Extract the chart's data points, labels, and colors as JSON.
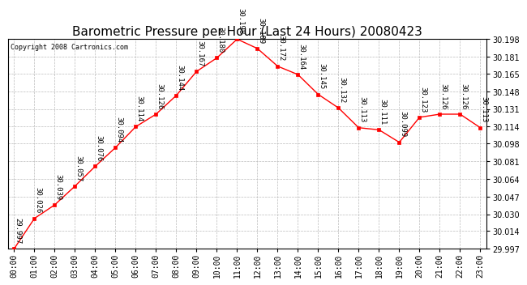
{
  "title": "Barometric Pressure per Hour (Last 24 Hours) 20080423",
  "copyright": "Copyright 2008 Cartronics.com",
  "hours": [
    0,
    1,
    2,
    3,
    4,
    5,
    6,
    7,
    8,
    9,
    10,
    11,
    12,
    13,
    14,
    15,
    16,
    17,
    18,
    19,
    20,
    21,
    22,
    23
  ],
  "labels": [
    "00:00",
    "01:00",
    "02:00",
    "03:00",
    "04:00",
    "05:00",
    "06:00",
    "07:00",
    "08:00",
    "09:00",
    "10:00",
    "11:00",
    "12:00",
    "13:00",
    "14:00",
    "15:00",
    "16:00",
    "17:00",
    "18:00",
    "19:00",
    "20:00",
    "21:00",
    "22:00",
    "23:00"
  ],
  "values": [
    29.997,
    30.026,
    30.039,
    30.057,
    30.076,
    30.094,
    30.114,
    30.126,
    30.144,
    30.167,
    30.18,
    30.198,
    30.189,
    30.172,
    30.164,
    30.145,
    30.132,
    30.113,
    30.111,
    30.099,
    30.123,
    30.126,
    30.126,
    30.113
  ],
  "ylim_min": 29.997,
  "ylim_max": 30.198,
  "yticks": [
    29.997,
    30.014,
    30.03,
    30.047,
    30.064,
    30.081,
    30.098,
    30.114,
    30.131,
    30.148,
    30.165,
    30.181,
    30.198
  ],
  "line_color": "#ff0000",
  "marker_color": "#ff0000",
  "bg_color": "#ffffff",
  "grid_color": "#bbbbbb",
  "title_fontsize": 11,
  "tick_fontsize": 7,
  "annotation_fontsize": 6.5,
  "copyright_fontsize": 6
}
